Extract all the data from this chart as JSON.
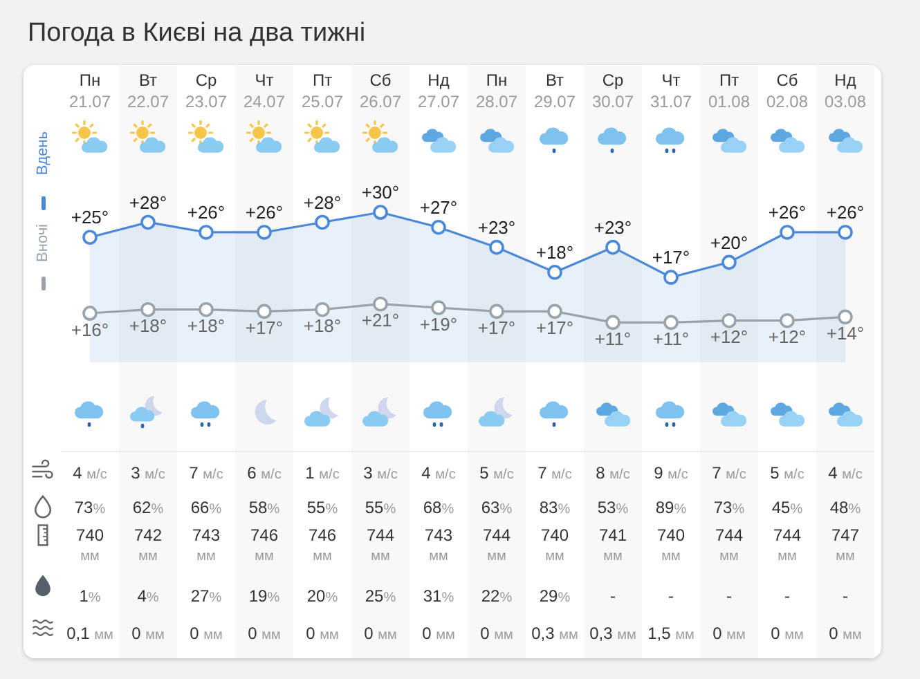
{
  "chart_data": [
    {
      "type": "line",
      "title": "Погода в Києві на два тижні",
      "categories": [
        "Пн\n21.07",
        "Вт\n22.07",
        "Ср\n23.07",
        "Чт\n24.07",
        "Пт\n25.07",
        "Сб\n26.07",
        "Нд\n27.07",
        "Пн\n28.07",
        "Вт\n29.07",
        "Ср\n30.07",
        "Чт\n31.07",
        "Пт\n01.08",
        "Сб\n02.08",
        "Нд\n03.08"
      ],
      "series": [
        {
          "name": "Вдень",
          "type": "area",
          "color": "#4a88d9",
          "values": [
            25,
            28,
            26,
            26,
            28,
            30,
            27,
            23,
            18,
            23,
            17,
            20,
            26,
            26
          ],
          "value_labels": [
            "+25°",
            "+28°",
            "+26°",
            "+26°",
            "+28°",
            "+30°",
            "+27°",
            "+23°",
            "+18°",
            "+23°",
            "+17°",
            "+20°",
            "+26°",
            "+26°"
          ]
        },
        {
          "name": "Вночі",
          "color": "#98a3ab",
          "axis": "y2",
          "values": [
            16,
            18,
            18,
            17,
            18,
            21,
            19,
            17,
            17,
            11,
            11,
            12,
            12,
            14
          ],
          "value_labels": [
            "+16°",
            "+18°",
            "+18°",
            "+17°",
            "+18°",
            "+21°",
            "+19°",
            "+17°",
            "+17°",
            "+11°",
            "+11°",
            "+12°",
            "+12°",
            "+14°"
          ]
        }
      ],
      "marker": "circle",
      "legend": "left",
      "tick_labels": "x"
    },
    {
      "type": "other",
      "annotations": [
        "4 м/с",
        "3 м/с",
        "7 м/с",
        "6 м/с",
        "1 м/с",
        "3 м/с",
        "4 м/с",
        "5 м/с",
        "7 м/с",
        "8 м/с",
        "9 м/с",
        "7 м/с",
        "5 м/с",
        "4 м/с",
        "73%",
        "62%",
        "66%",
        "58%",
        "55%",
        "55%",
        "68%",
        "63%",
        "83%",
        "53%",
        "89%",
        "73%",
        "45%",
        "48%",
        "740\nмм",
        "742\nмм",
        "743\nмм",
        "746\nмм",
        "746\nмм",
        "744\nмм",
        "743\nмм",
        "744\nмм",
        "740\nмм",
        "741\nмм",
        "740\nмм",
        "744\nмм",
        "744\nмм",
        "747\nмм",
        "1%",
        "4%",
        "27%",
        "19%",
        "20%",
        "25%",
        "31%",
        "22%",
        "29%",
        "-",
        "-",
        "-",
        "-",
        "-",
        "0,1 мм",
        "0 мм",
        "0 мм",
        "0 мм",
        "0 мм",
        "0 мм",
        "0 мм",
        "0 мм",
        "0,3 мм",
        "0,3 мм",
        "1,5 мм",
        "0 мм",
        "0 мм",
        "0 мм"
      ]
    }
  ]
}
